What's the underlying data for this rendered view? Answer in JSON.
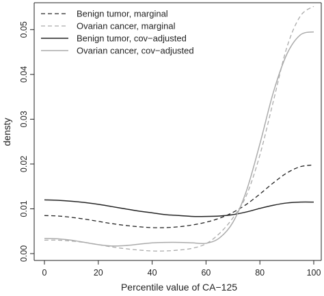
{
  "chart_data": {
    "type": "line",
    "xlabel": "Percentile value of CA−125",
    "ylabel": "densty",
    "xlim": [
      0,
      100
    ],
    "ylim": [
      0,
      0.056
    ],
    "xticks": [
      0,
      20,
      40,
      60,
      80,
      100
    ],
    "yticks": [
      0.0,
      0.01,
      0.02,
      0.03,
      0.04,
      0.05
    ],
    "ytick_labels": [
      "0.00",
      "0.01",
      "0.02",
      "0.03",
      "0.04",
      "0.05"
    ],
    "legend_position": "top-left",
    "grid": false,
    "series": [
      {
        "name": "Benign tumor, marginal",
        "color": "#222222",
        "dash": "dashed",
        "x": [
          0,
          5,
          10,
          15,
          20,
          25,
          30,
          35,
          40,
          45,
          50,
          55,
          60,
          65,
          70,
          75,
          80,
          85,
          90,
          95,
          100
        ],
        "y": [
          0.0085,
          0.0084,
          0.0081,
          0.0077,
          0.0072,
          0.0067,
          0.0063,
          0.006,
          0.0058,
          0.0058,
          0.006,
          0.0064,
          0.007,
          0.0079,
          0.0092,
          0.011,
          0.0133,
          0.0158,
          0.018,
          0.0194,
          0.0198
        ]
      },
      {
        "name": "Ovarian cancer, marginal",
        "color": "#aaaaaa",
        "dash": "dashed",
        "x": [
          0,
          5,
          10,
          15,
          20,
          25,
          30,
          35,
          40,
          45,
          50,
          55,
          60,
          65,
          70,
          75,
          80,
          85,
          90,
          95,
          100
        ],
        "y": [
          0.003,
          0.003,
          0.0028,
          0.0025,
          0.002,
          0.0015,
          0.0011,
          0.0008,
          0.0006,
          0.0006,
          0.0008,
          0.0012,
          0.0022,
          0.0045,
          0.008,
          0.013,
          0.022,
          0.034,
          0.046,
          0.053,
          0.0552
        ]
      },
      {
        "name": "Benign tumor, cov−adjusted",
        "color": "#222222",
        "dash": "solid",
        "x": [
          0,
          5,
          10,
          15,
          20,
          25,
          30,
          35,
          40,
          45,
          50,
          55,
          60,
          65,
          70,
          75,
          80,
          85,
          90,
          95,
          100
        ],
        "y": [
          0.012,
          0.0119,
          0.0117,
          0.0114,
          0.011,
          0.0105,
          0.01,
          0.0095,
          0.0091,
          0.0087,
          0.0085,
          0.0083,
          0.0083,
          0.0084,
          0.0087,
          0.0093,
          0.0101,
          0.0108,
          0.0113,
          0.0115,
          0.0115
        ]
      },
      {
        "name": "Ovarian cancer, cov−adjusted",
        "color": "#aaaaaa",
        "dash": "solid",
        "x": [
          0,
          5,
          10,
          15,
          20,
          25,
          30,
          35,
          40,
          45,
          50,
          55,
          60,
          65,
          70,
          75,
          80,
          85,
          90,
          95,
          100
        ],
        "y": [
          0.0034,
          0.0033,
          0.003,
          0.0025,
          0.002,
          0.0017,
          0.0018,
          0.0021,
          0.0024,
          0.0025,
          0.0025,
          0.0024,
          0.0023,
          0.0035,
          0.007,
          0.014,
          0.0245,
          0.036,
          0.0445,
          0.0488,
          0.0495
        ]
      }
    ]
  }
}
